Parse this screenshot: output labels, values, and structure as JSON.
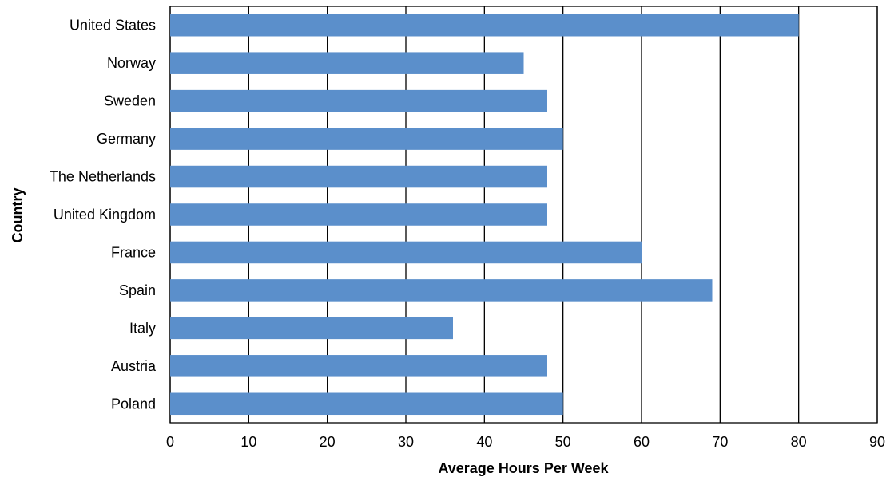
{
  "chart_data": {
    "type": "bar",
    "orientation": "horizontal",
    "categories": [
      "United States",
      "Norway",
      "Sweden",
      "Germany",
      "The Netherlands",
      "United Kingdom",
      "France",
      "Spain",
      "Italy",
      "Austria",
      "Poland"
    ],
    "values": [
      80,
      45,
      48,
      50,
      48,
      48,
      60,
      69,
      36,
      48,
      50
    ],
    "xlabel": "Average Hours Per Week",
    "ylabel": "Country",
    "xlim": [
      0,
      90
    ],
    "xticks": [
      "0",
      "10",
      "20",
      "30",
      "40",
      "50",
      "60",
      "70",
      "80",
      "90"
    ],
    "grid": "vertical",
    "bar_color": "#5b8fcb"
  }
}
